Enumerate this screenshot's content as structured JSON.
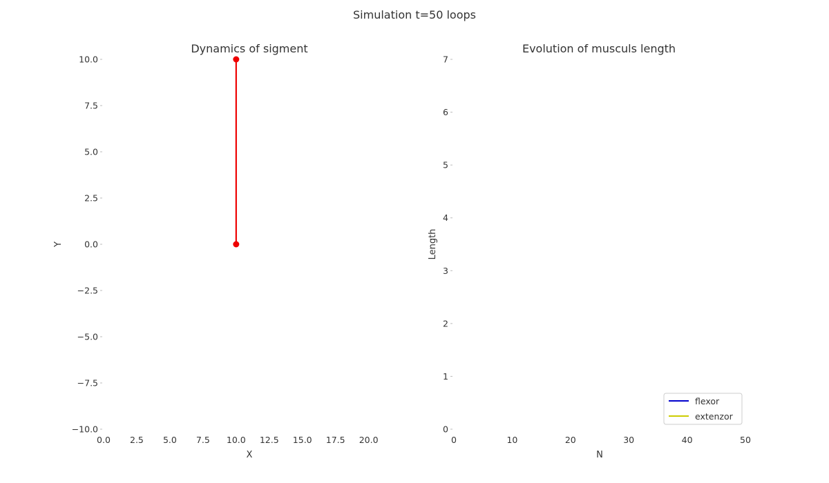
{
  "figure": {
    "suptitle": "Simulation t=50 loops"
  },
  "chart_data": [
    {
      "type": "line",
      "title": "Dynamics of sigment",
      "xlabel": "X",
      "ylabel": "Y",
      "xlim": [
        0,
        22
      ],
      "ylim": [
        -10,
        10
      ],
      "xticks": [
        0.0,
        2.5,
        5.0,
        7.5,
        10.0,
        12.5,
        15.0,
        17.5,
        20.0
      ],
      "xtick_labels": [
        "0.0",
        "2.5",
        "5.0",
        "7.5",
        "10.0",
        "12.5",
        "15.0",
        "17.5",
        "20.0"
      ],
      "yticks": [
        10.0,
        7.5,
        5.0,
        2.5,
        0.0,
        -2.5,
        -5.0,
        -7.5,
        -10.0
      ],
      "ytick_labels": [
        "10.0",
        "7.5",
        "5.0",
        "2.5",
        "0.0",
        "−2.5",
        "−5.0",
        "−7.5",
        "−10.0"
      ],
      "grid": false,
      "series": [
        {
          "x": [
            10,
            10
          ],
          "y": [
            0,
            10
          ],
          "color": "#ee0000",
          "marker": "circle"
        }
      ]
    },
    {
      "type": "line",
      "title": "Evolution of musculs length",
      "xlabel": "N",
      "ylabel": "Length",
      "xlim": [
        0,
        50
      ],
      "ylim": [
        0,
        7
      ],
      "xticks": [
        0,
        10,
        20,
        30,
        40,
        50
      ],
      "xtick_labels": [
        "0",
        "10",
        "20",
        "30",
        "40",
        "50"
      ],
      "yticks": [
        7,
        6,
        5,
        4,
        3,
        2,
        1,
        0
      ],
      "ytick_labels": [
        "7",
        "6",
        "5",
        "4",
        "3",
        "2",
        "1",
        "0"
      ],
      "grid": false,
      "legend": "lower-right",
      "series": [
        {
          "name": "flexor",
          "color": "#0000cc",
          "x": [],
          "y": []
        },
        {
          "name": "extenzor",
          "color": "#cccc00",
          "x": [],
          "y": []
        }
      ]
    }
  ]
}
